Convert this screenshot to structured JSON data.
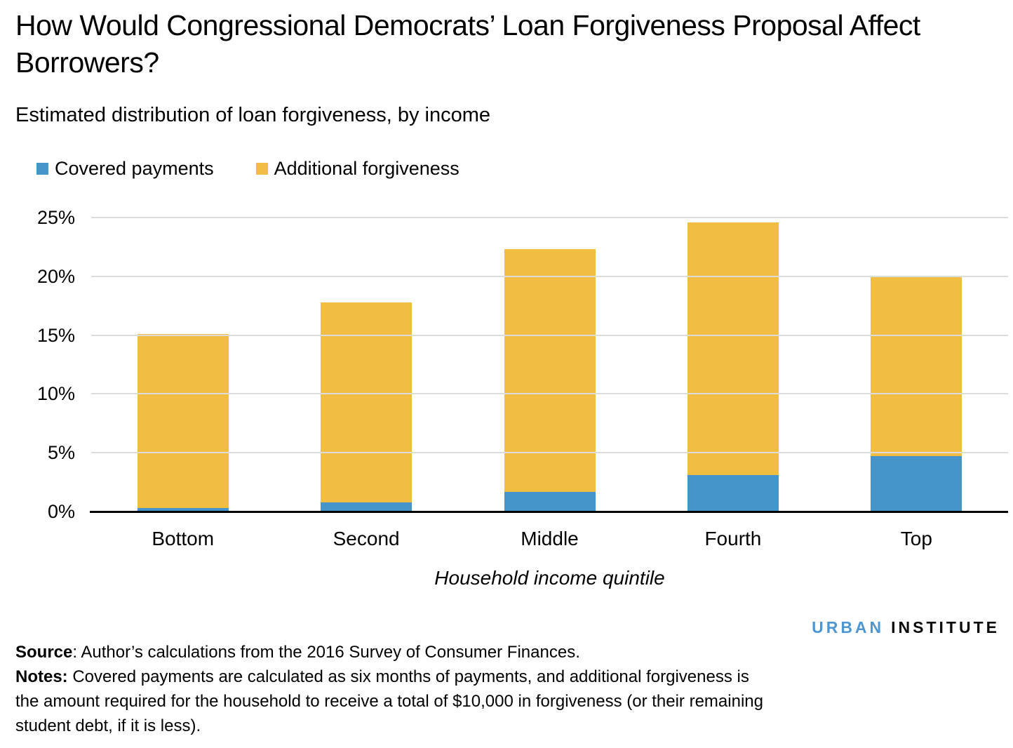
{
  "header": {
    "title": "How Would Congressional Democrats’ Loan Forgiveness Proposal Affect Borrowers?",
    "subtitle": "Estimated distribution of loan forgiveness, by income"
  },
  "chart_data": {
    "type": "bar",
    "stacked": true,
    "categories": [
      "Bottom",
      "Second",
      "Middle",
      "Fourth",
      "Top"
    ],
    "series": [
      {
        "name": "Covered payments",
        "color": "#4695ca",
        "values": [
          0.3,
          0.8,
          1.7,
          3.1,
          4.7
        ]
      },
      {
        "name": "Additional forgiveness",
        "color": "#f2bd43",
        "values": [
          14.8,
          17.0,
          20.6,
          21.5,
          15.3
        ]
      }
    ],
    "totals": [
      15.1,
      17.8,
      22.3,
      24.6,
      20.0
    ],
    "xlabel": "Household income quintile",
    "ylabel": "",
    "y_ticks": [
      "0%",
      "5%",
      "10%",
      "15%",
      "20%",
      "25%"
    ],
    "y_tick_values": [
      0,
      5,
      10,
      15,
      20,
      25
    ],
    "ylim": [
      0,
      25
    ],
    "grid": true,
    "legend_position": "top-left",
    "gridline_color": "#dcdcdc",
    "axis_color": "#000000"
  },
  "footer": {
    "logo_part1": "URBAN",
    "logo_part2": "INSTITUTE",
    "source_label": "Source",
    "source_text": ": Author’s calculations from the 2016 Survey of Consumer Finances.",
    "notes_label": "Notes:",
    "notes_text": " Covered payments are calculated as six months of payments, and additional forgiveness is the amount required for the household to receive a total of $10,000 in forgiveness (or their remaining student debt, if it is less)."
  }
}
